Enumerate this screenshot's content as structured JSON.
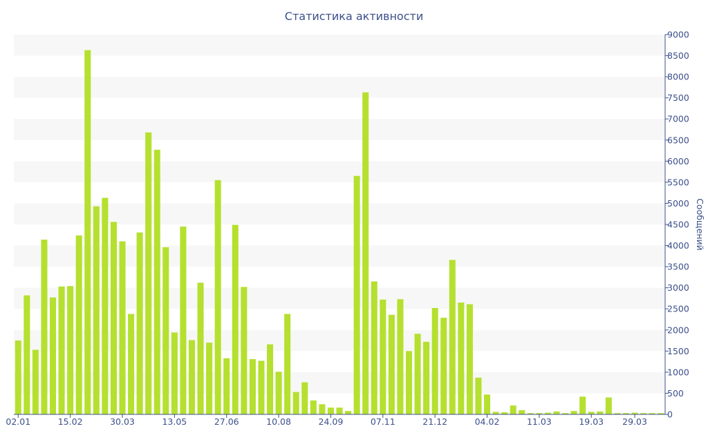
{
  "chart_data": {
    "type": "bar",
    "title": "Статистика активности",
    "ylabel": "Сообщений",
    "ylim": [
      0,
      9000
    ],
    "y_axis_side": "right",
    "y_ticks": [
      0,
      500,
      1000,
      1500,
      2000,
      2500,
      3000,
      3500,
      4000,
      4500,
      5000,
      5500,
      6000,
      6500,
      7000,
      7500,
      8000,
      8500,
      9000
    ],
    "x_tick_labels": [
      "02.01",
      "15.02",
      "30.03",
      "13.05",
      "27.06",
      "10.08",
      "24.09",
      "07.11",
      "21.12",
      "04.02",
      "11.03",
      "19.03",
      "29.03"
    ],
    "x_tick_bar_index": [
      0,
      6,
      12,
      18,
      24,
      30,
      36,
      42,
      48,
      54,
      60,
      66,
      71
    ],
    "grid": "horizontal bands",
    "bar_color": "#b5e02f",
    "values": [
      1750,
      2820,
      1530,
      4140,
      2770,
      3030,
      3040,
      4240,
      8630,
      4930,
      5130,
      4560,
      4100,
      2380,
      4310,
      6680,
      6270,
      3960,
      1940,
      4450,
      1760,
      3120,
      1700,
      5550,
      1330,
      4490,
      3020,
      1310,
      1270,
      1660,
      1010,
      2380,
      530,
      760,
      330,
      240,
      160,
      160,
      80,
      5650,
      7630,
      3150,
      2720,
      2360,
      2730,
      1500,
      1910,
      1720,
      2520,
      2290,
      3660,
      2650,
      2610,
      870,
      470,
      60,
      50,
      210,
      100,
      30,
      30,
      40,
      70,
      30,
      80,
      420,
      60,
      70,
      400,
      30,
      30,
      40,
      30,
      30,
      30
    ]
  }
}
